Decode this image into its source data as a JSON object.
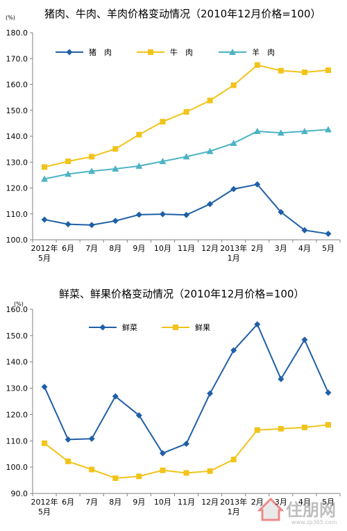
{
  "chart_data": [
    {
      "type": "line",
      "title": "猪肉、牛肉、羊肉价格变动情况（2010年12月价格=100）",
      "ylabel": "(%)",
      "ylim": [
        100,
        180
      ],
      "yticks": [
        "100.0",
        "110.0",
        "120.0",
        "130.0",
        "140.0",
        "150.0",
        "160.0",
        "170.0",
        "180.0"
      ],
      "categories": [
        "2012年\n5月",
        "6月",
        "7月",
        "8月",
        "9月",
        "10月",
        "11月",
        "12月",
        "2013年\n1月",
        "2月",
        "3月",
        "4月",
        "5月"
      ],
      "legend_position": "top-left",
      "grid": false,
      "series": [
        {
          "name": "猪　肉",
          "color": "#1F5FA6",
          "marker": "diamond",
          "values": [
            107.8,
            106.0,
            105.7,
            107.3,
            109.7,
            109.9,
            109.6,
            113.8,
            119.6,
            121.4,
            110.7,
            103.7,
            102.3
          ]
        },
        {
          "name": "牛　肉",
          "color": "#F2C318",
          "marker": "square",
          "values": [
            128.1,
            130.3,
            132.1,
            135.1,
            140.6,
            145.6,
            149.4,
            153.8,
            159.7,
            167.5,
            165.3,
            164.7,
            165.5
          ]
        },
        {
          "name": "羊　肉",
          "color": "#4BB3C3",
          "marker": "triangle",
          "values": [
            123.5,
            125.4,
            126.5,
            127.4,
            128.5,
            130.3,
            132.1,
            134.2,
            137.3,
            141.9,
            141.3,
            141.9,
            142.6
          ]
        }
      ]
    },
    {
      "type": "line",
      "title": "鲜菜、鲜果价格变动情况（2010年12月价格=100）",
      "ylabel": "(%)",
      "ylim": [
        90,
        160
      ],
      "yticks": [
        "90.0",
        "100.0",
        "110.0",
        "120.0",
        "130.0",
        "140.0",
        "150.0",
        "160.0"
      ],
      "categories": [
        "2012年\n5月",
        "6月",
        "7月",
        "8月",
        "9月",
        "10月",
        "11月",
        "12月",
        "2013年\n1月",
        "2月",
        "3月",
        "4月",
        "5月"
      ],
      "legend_position": "top-left",
      "grid": false,
      "series": [
        {
          "name": "鲜菜",
          "color": "#1F5FA6",
          "marker": "diamond",
          "values": [
            130.5,
            110.5,
            110.8,
            126.9,
            119.7,
            105.3,
            108.9,
            128.0,
            144.4,
            154.3,
            133.5,
            148.4,
            128.3
          ]
        },
        {
          "name": "鲜果",
          "color": "#F2C318",
          "marker": "square",
          "values": [
            109.1,
            102.2,
            99.1,
            95.8,
            96.5,
            98.8,
            97.8,
            98.5,
            102.9,
            114.1,
            114.6,
            115.1,
            116.1
          ]
        }
      ]
    }
  ],
  "watermark": {
    "text": "住朋网",
    "url_text": "www.zp365.com"
  }
}
